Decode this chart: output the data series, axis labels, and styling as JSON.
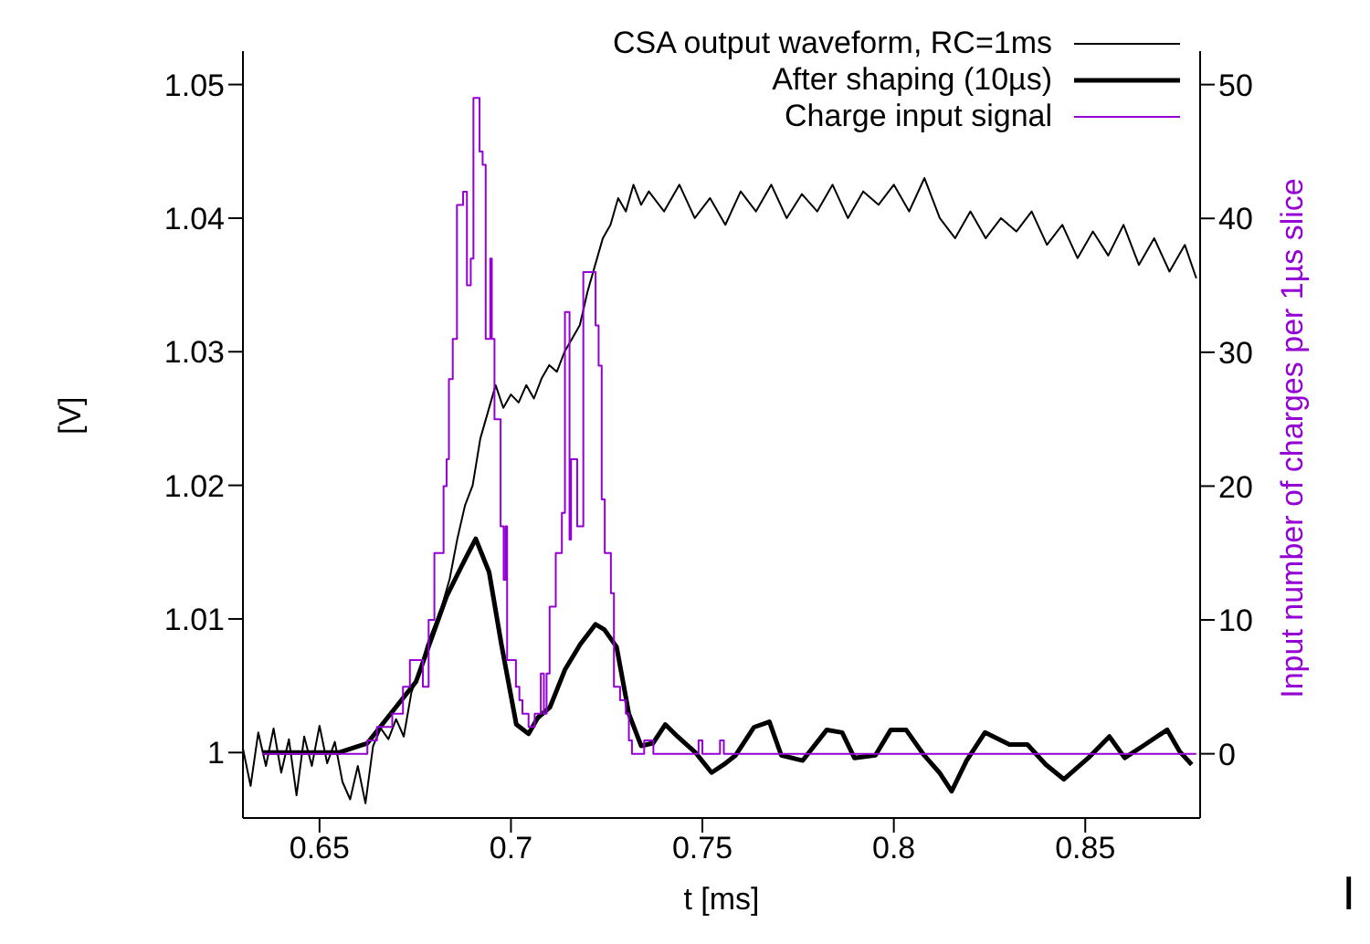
{
  "chart_data": {
    "type": "line",
    "xlabel": "t [ms]",
    "ylabel": "[V]",
    "y2label": "Input number of charges per 1µs slice",
    "xlim": [
      0.63,
      0.88
    ],
    "xticks": [
      0.65,
      0.7,
      0.75,
      0.8,
      0.85
    ],
    "ylim": [
      0.9951,
      1.0525
    ],
    "yticks": [
      1,
      1.01,
      1.02,
      1.03,
      1.04,
      1.05
    ],
    "y2lim": [
      -4.8,
      52.5
    ],
    "y2ticks": [
      0,
      10,
      20,
      30,
      40,
      50
    ],
    "grid": false,
    "legend": "top right",
    "marker": "none",
    "annotations": [
      "I"
    ],
    "series": [
      {
        "name": "CSA output waveform, RC=1ms",
        "color": "#000000",
        "type": "line",
        "x": [
          0.63,
          0.632,
          0.634,
          0.636,
          0.638,
          0.64,
          0.642,
          0.644,
          0.646,
          0.648,
          0.65,
          0.652,
          0.654,
          0.656,
          0.658,
          0.66,
          0.662,
          0.664,
          0.666,
          0.668,
          0.67,
          0.672,
          0.674,
          0.676,
          0.678,
          0.68,
          0.682,
          0.684,
          0.686,
          0.688,
          0.69,
          0.692,
          0.694,
          0.696,
          0.698,
          0.7,
          0.702,
          0.704,
          0.706,
          0.708,
          0.71,
          0.712,
          0.714,
          0.716,
          0.718,
          0.72,
          0.722,
          0.724,
          0.726,
          0.728,
          0.73,
          0.732,
          0.734,
          0.736,
          0.74,
          0.744,
          0.748,
          0.752,
          0.756,
          0.76,
          0.764,
          0.768,
          0.772,
          0.776,
          0.78,
          0.784,
          0.788,
          0.792,
          0.796,
          0.8,
          0.804,
          0.808,
          0.812,
          0.816,
          0.82,
          0.824,
          0.828,
          0.832,
          0.836,
          0.84,
          0.844,
          0.848,
          0.852,
          0.856,
          0.86,
          0.864,
          0.868,
          0.872,
          0.876,
          0.879
        ],
        "values": [
          1.0003,
          0.9975,
          1.0015,
          0.999,
          1.0018,
          0.9985,
          1.001,
          0.9968,
          1.0012,
          0.999,
          1.002,
          0.9992,
          1.0008,
          0.9978,
          0.9965,
          0.999,
          0.9962,
          1.0005,
          1.0018,
          1.001,
          1.0025,
          1.0012,
          1.0045,
          1.006,
          1.008,
          1.0095,
          1.011,
          1.013,
          1.016,
          1.0185,
          1.02,
          1.0235,
          1.0255,
          1.0275,
          1.0258,
          1.0268,
          1.0262,
          1.0275,
          1.0265,
          1.028,
          1.029,
          1.0285,
          1.03,
          1.031,
          1.032,
          1.0345,
          1.0365,
          1.0385,
          1.0395,
          1.0415,
          1.0405,
          1.0425,
          1.041,
          1.042,
          1.0405,
          1.0425,
          1.04,
          1.0415,
          1.0395,
          1.042,
          1.0405,
          1.0425,
          1.04,
          1.0418,
          1.0405,
          1.0425,
          1.04,
          1.042,
          1.041,
          1.0425,
          1.0405,
          1.043,
          1.04,
          1.0385,
          1.0405,
          1.0385,
          1.04,
          1.039,
          1.0405,
          1.038,
          1.0395,
          1.037,
          1.039,
          1.0372,
          1.0395,
          1.0365,
          1.0385,
          1.036,
          1.038,
          1.0355
        ]
      },
      {
        "name": "After shaping (10µs)",
        "color": "#000000",
        "type": "line",
        "x": [
          0.635,
          0.655,
          0.6625,
          0.6752,
          0.6832,
          0.6879,
          0.6908,
          0.6943,
          0.6975,
          0.7014,
          0.7046,
          0.707,
          0.7102,
          0.7141,
          0.7181,
          0.7221,
          0.7244,
          0.7276,
          0.7308,
          0.734,
          0.7371,
          0.7403,
          0.7435,
          0.7482,
          0.7524,
          0.7556,
          0.7587,
          0.7635,
          0.7675,
          0.7706,
          0.7762,
          0.7825,
          0.7865,
          0.7897,
          0.7952,
          0.7992,
          0.8032,
          0.8079,
          0.8119,
          0.8151,
          0.819,
          0.8238,
          0.8302,
          0.8349,
          0.8397,
          0.8444,
          0.8508,
          0.8563,
          0.8603,
          0.8651,
          0.8714,
          0.8746,
          0.8778
        ],
        "values": [
          1.0,
          1.0,
          1.0007,
          1.0053,
          1.0117,
          1.0144,
          1.016,
          1.0135,
          1.0081,
          1.0021,
          1.0014,
          1.0026,
          1.0034,
          1.0062,
          1.0081,
          1.0096,
          1.0092,
          1.0079,
          1.0029,
          1.0005,
          1.0007,
          1.0021,
          1.0012,
          1.0,
          0.9985,
          0.9991,
          0.9998,
          1.0019,
          1.0023,
          0.9998,
          0.9994,
          1.0017,
          1.0015,
          0.9996,
          0.9998,
          1.0017,
          1.0017,
          0.9998,
          0.9985,
          0.9971,
          0.9994,
          1.0015,
          1.0006,
          1.0006,
          0.9991,
          0.998,
          0.9996,
          1.0012,
          0.9996,
          1.0005,
          1.0017,
          1.0001,
          0.9991
        ]
      },
      {
        "name": "Charge input signal",
        "color": "#9400d3",
        "type": "step",
        "axis": "y2",
        "x": [
          0.635,
          0.6625,
          0.665,
          0.669,
          0.6718,
          0.6736,
          0.677,
          0.6785,
          0.68,
          0.6824,
          0.6832,
          0.6838,
          0.6848,
          0.6859,
          0.6875,
          0.6885,
          0.6895,
          0.6902,
          0.6918,
          0.6926,
          0.6934,
          0.6946,
          0.695,
          0.6957,
          0.6973,
          0.6981,
          0.6986,
          0.699,
          0.7013,
          0.7022,
          0.703,
          0.7046,
          0.7062,
          0.7078,
          0.7086,
          0.7093,
          0.7101,
          0.7117,
          0.7133,
          0.7141,
          0.7153,
          0.7157,
          0.7173,
          0.7189,
          0.7221,
          0.7229,
          0.7237,
          0.7245,
          0.7261,
          0.7269,
          0.7285,
          0.73,
          0.7308,
          0.7316,
          0.7348,
          0.7372,
          0.749,
          0.75,
          0.7546,
          0.7556,
          0.879
        ],
        "values": [
          0,
          1,
          2,
          3,
          5,
          7,
          5,
          10,
          15,
          20,
          22,
          28,
          31,
          41,
          42,
          35,
          37,
          49,
          45,
          44,
          31,
          37,
          31,
          25,
          17,
          13,
          17,
          7,
          5,
          4,
          3,
          2,
          3,
          6,
          3,
          6,
          11,
          15,
          18,
          33,
          16,
          22,
          17,
          36,
          32,
          29,
          19,
          15,
          12,
          5,
          4,
          3,
          1,
          0,
          1,
          0,
          1,
          0,
          1,
          0,
          0
        ]
      }
    ]
  }
}
